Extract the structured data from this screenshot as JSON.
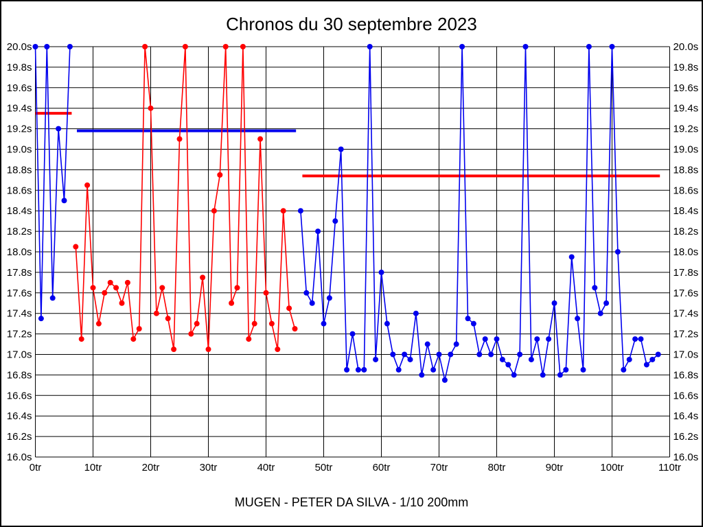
{
  "page": {
    "background": "#FFFFFF",
    "border_color": "#000000"
  },
  "chart_data": {
    "type": "line",
    "title": "Chronos du 30 septembre 2023",
    "caption": "MUGEN - PETER DA SILVA - 1/10 200mm",
    "x_axis": {
      "min": 0,
      "max": 110,
      "tick_step": 10,
      "label_suffix": "tr"
    },
    "y_axis": {
      "min": 16.0,
      "max": 20.0,
      "tick_step": 0.2,
      "label_suffix": "s",
      "decimals": 1
    },
    "grid": true,
    "legend_position": "none",
    "colors": {
      "blue_series": "#0000EE",
      "red_series": "#FF0000",
      "grid": "#000000"
    },
    "series": [
      {
        "name": "run-1",
        "color": "#0000EE",
        "start_lap": 0,
        "values": [
          20.0,
          17.35,
          20.0,
          17.55,
          19.2,
          18.5,
          20.0
        ]
      },
      {
        "name": "run-2",
        "color": "#FF0000",
        "start_lap": 7,
        "values": [
          18.05,
          17.15,
          18.65,
          17.65,
          17.3,
          17.6,
          17.7,
          17.65,
          17.5,
          17.7,
          17.15,
          17.25,
          20.0,
          19.4,
          17.4,
          17.65,
          17.35,
          17.05,
          19.1,
          20.0,
          17.2,
          17.3,
          17.75,
          17.05,
          18.4,
          18.75,
          20.0,
          17.5,
          17.65,
          20.0,
          17.15,
          17.3,
          19.1,
          17.6,
          17.3,
          17.05,
          18.4,
          17.45,
          17.25
        ]
      },
      {
        "name": "run-3",
        "color": "#0000EE",
        "start_lap": 46,
        "values": [
          18.4,
          17.6,
          17.5,
          18.2,
          17.3,
          17.55,
          18.3,
          19.0,
          16.85,
          17.2,
          16.85,
          16.85,
          20.0,
          16.95,
          17.8,
          17.3,
          17.0,
          16.85,
          17.0,
          16.95,
          17.4,
          16.8,
          17.1,
          16.85,
          17.0,
          16.75,
          17.0,
          17.1,
          20.0,
          17.35,
          17.3,
          17.0,
          17.15,
          17.0,
          17.15,
          16.95,
          16.9,
          16.8,
          17.0,
          20.0,
          16.95,
          17.15,
          16.8,
          17.15,
          17.5,
          16.8,
          16.85,
          17.95,
          17.35,
          16.85,
          20.0,
          17.65,
          17.4,
          17.5,
          20.0,
          18.0,
          16.85,
          16.95,
          17.15,
          17.15,
          16.9,
          16.95,
          17.0
        ]
      }
    ],
    "average_lines": [
      {
        "name": "avg-run-1",
        "color": "#FF0000",
        "value": 19.35,
        "x_from": 0,
        "x_to": 6.3
      },
      {
        "name": "avg-run-2",
        "color": "#0000EE",
        "value": 19.18,
        "x_from": 7.2,
        "x_to": 45.2
      },
      {
        "name": "avg-run-3",
        "color": "#FF0000",
        "value": 18.74,
        "x_from": 46.3,
        "x_to": 108.3
      }
    ]
  }
}
